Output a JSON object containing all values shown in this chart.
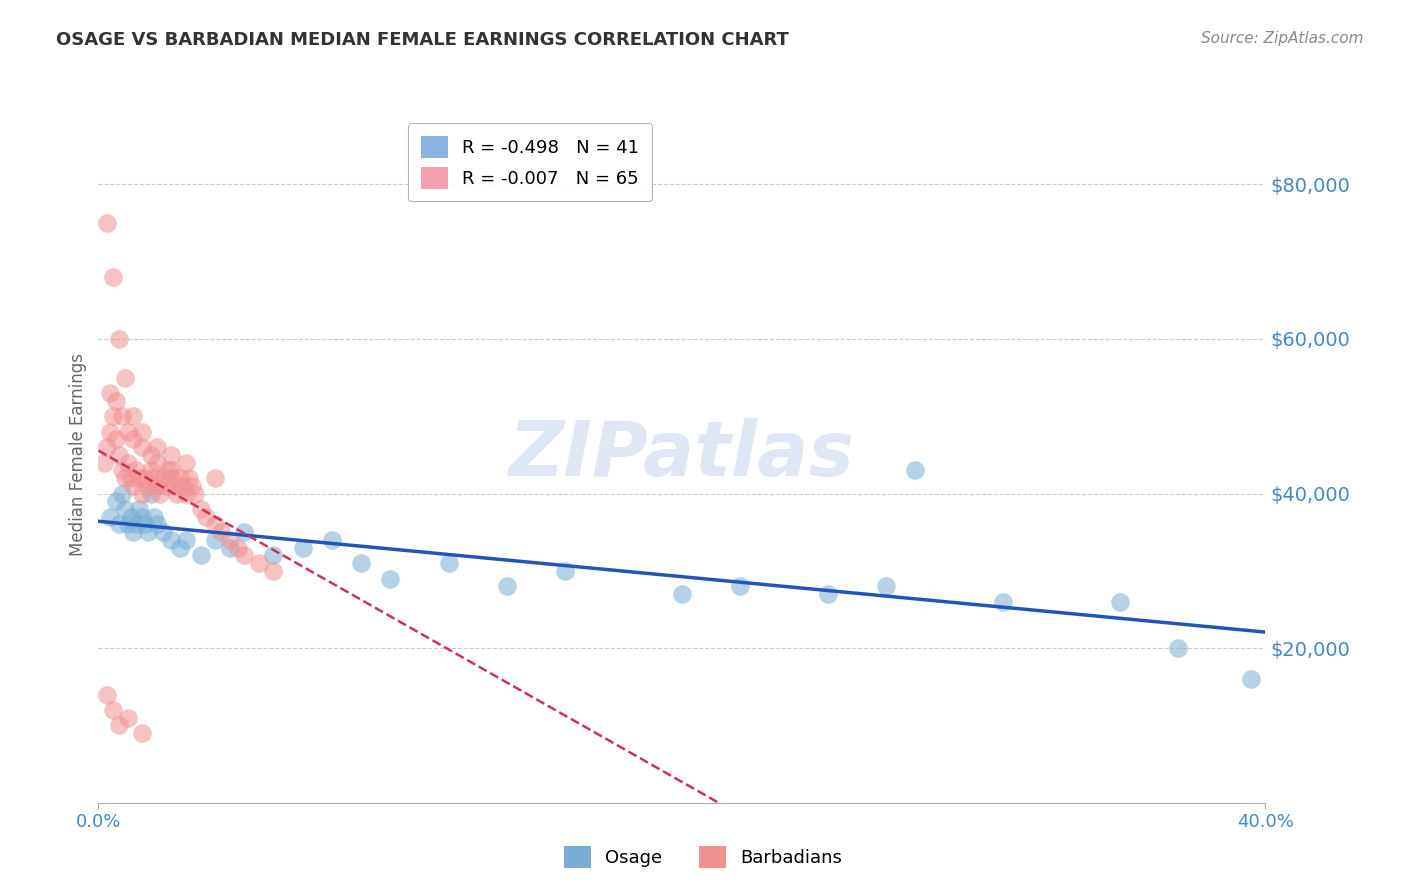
{
  "title": "OSAGE VS BARBADIAN MEDIAN FEMALE EARNINGS CORRELATION CHART",
  "source": "Source: ZipAtlas.com",
  "ylabel": "Median Female Earnings",
  "watermark": "ZIPatlas",
  "y_tick_labels": [
    "$20,000",
    "$40,000",
    "$60,000",
    "$80,000"
  ],
  "y_tick_values": [
    20000,
    40000,
    60000,
    80000
  ],
  "ylim": [
    0,
    90000
  ],
  "xlim": [
    0.0,
    0.4
  ],
  "legend_items": [
    {
      "label": "R = -0.498   N = 41",
      "color": "#8ab4e0"
    },
    {
      "label": "R = -0.007   N = 65",
      "color": "#f4a0b0"
    }
  ],
  "osage_color": "#7aadd4",
  "barbadian_color": "#f09090",
  "osage_line_color": "#2255bb",
  "barbadian_line_color": "#cc3355",
  "background_color": "#ffffff",
  "grid_color": "#cccccc",
  "tick_label_color": "#4488cc",
  "title_color": "#333333",
  "osage_x": [
    0.004,
    0.006,
    0.007,
    0.008,
    0.009,
    0.01,
    0.011,
    0.012,
    0.013,
    0.014,
    0.015,
    0.016,
    0.017,
    0.018,
    0.019,
    0.02,
    0.022,
    0.025,
    0.028,
    0.03,
    0.035,
    0.04,
    0.045,
    0.05,
    0.06,
    0.07,
    0.08,
    0.09,
    0.1,
    0.12,
    0.14,
    0.16,
    0.2,
    0.22,
    0.25,
    0.27,
    0.31,
    0.35,
    0.37,
    0.395,
    0.28
  ],
  "osage_y": [
    37000,
    39000,
    36000,
    40000,
    38000,
    36000,
    37000,
    35000,
    36000,
    38000,
    37000,
    36000,
    35000,
    40000,
    37000,
    36000,
    35000,
    34000,
    33000,
    34000,
    32000,
    34000,
    33000,
    35000,
    32000,
    33000,
    34000,
    31000,
    29000,
    31000,
    28000,
    30000,
    27000,
    28000,
    27000,
    28000,
    26000,
    26000,
    20000,
    16000,
    43000
  ],
  "barbadian_x": [
    0.002,
    0.003,
    0.004,
    0.005,
    0.006,
    0.007,
    0.008,
    0.009,
    0.01,
    0.011,
    0.012,
    0.013,
    0.014,
    0.015,
    0.016,
    0.017,
    0.018,
    0.019,
    0.02,
    0.021,
    0.022,
    0.023,
    0.024,
    0.025,
    0.026,
    0.027,
    0.028,
    0.029,
    0.03,
    0.031,
    0.032,
    0.033,
    0.035,
    0.037,
    0.04,
    0.042,
    0.045,
    0.048,
    0.05,
    0.055,
    0.06,
    0.004,
    0.006,
    0.008,
    0.01,
    0.012,
    0.015,
    0.018,
    0.02,
    0.025,
    0.003,
    0.005,
    0.007,
    0.009,
    0.012,
    0.015,
    0.02,
    0.025,
    0.03,
    0.04,
    0.003,
    0.005,
    0.007,
    0.01,
    0.015
  ],
  "barbadian_y": [
    44000,
    46000,
    48000,
    50000,
    47000,
    45000,
    43000,
    42000,
    44000,
    42000,
    41000,
    43000,
    42000,
    40000,
    42000,
    41000,
    43000,
    42000,
    41000,
    40000,
    42000,
    41000,
    43000,
    42000,
    41000,
    40000,
    42000,
    41000,
    40000,
    42000,
    41000,
    40000,
    38000,
    37000,
    36000,
    35000,
    34000,
    33000,
    32000,
    31000,
    30000,
    53000,
    52000,
    50000,
    48000,
    47000,
    46000,
    45000,
    44000,
    43000,
    75000,
    68000,
    60000,
    55000,
    50000,
    48000,
    46000,
    45000,
    44000,
    42000,
    14000,
    12000,
    10000,
    11000,
    9000
  ]
}
